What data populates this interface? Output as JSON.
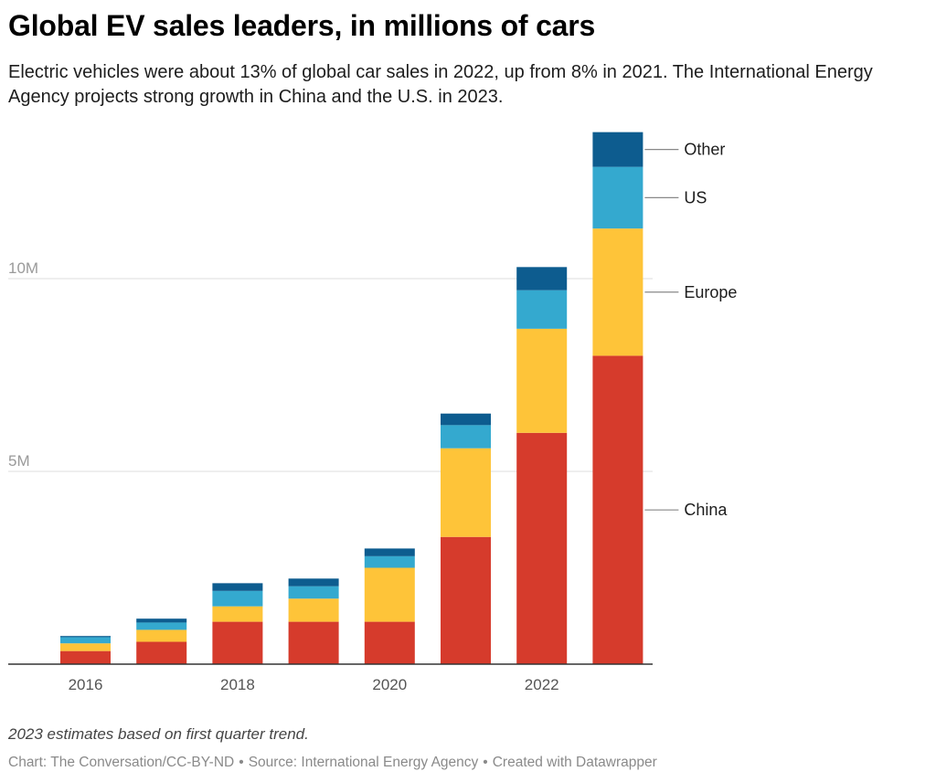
{
  "header": {
    "title": "Global EV sales leaders, in millions of cars",
    "subtitle": "Electric vehicles were about 13% of global car sales in 2022, up from 8% in 2021. The International Energy Agency projects strong growth in China and the U.S. in 2023."
  },
  "footer": {
    "notes": "2023 estimates based on first quarter trend.",
    "credit": "Chart: The Conversation/CC-BY-ND",
    "source": "Source: International Energy Agency",
    "tool": "Created with Datawrapper",
    "separator": "•"
  },
  "chart_data": {
    "type": "bar",
    "stacked": true,
    "title": "Global EV sales leaders, in millions of cars",
    "categories": [
      "2016",
      "2017",
      "2018",
      "2019",
      "2020",
      "2021",
      "2022",
      "2023"
    ],
    "x_tick_labels": [
      "2016",
      "2018",
      "2020",
      "2022"
    ],
    "y_ticks": [
      {
        "value": 5,
        "label": "5M"
      },
      {
        "value": 10,
        "label": "10M"
      }
    ],
    "ylim": [
      0,
      14
    ],
    "grid": true,
    "legend_placement": "right, labels at last bar",
    "series": [
      {
        "name": "China",
        "color": "#d63b2c",
        "values": [
          0.34,
          0.58,
          1.1,
          1.1,
          1.1,
          3.3,
          6.0,
          8.0
        ]
      },
      {
        "name": "Europe",
        "color": "#fec439",
        "values": [
          0.2,
          0.31,
          0.4,
          0.6,
          1.4,
          2.3,
          2.7,
          3.3
        ]
      },
      {
        "name": "US",
        "color": "#34a9cf",
        "values": [
          0.16,
          0.19,
          0.4,
          0.32,
          0.3,
          0.6,
          1.0,
          1.6
        ]
      },
      {
        "name": "Other",
        "color": "#0d5c8f",
        "values": [
          0.03,
          0.1,
          0.2,
          0.2,
          0.2,
          0.3,
          0.6,
          0.9
        ]
      }
    ]
  }
}
